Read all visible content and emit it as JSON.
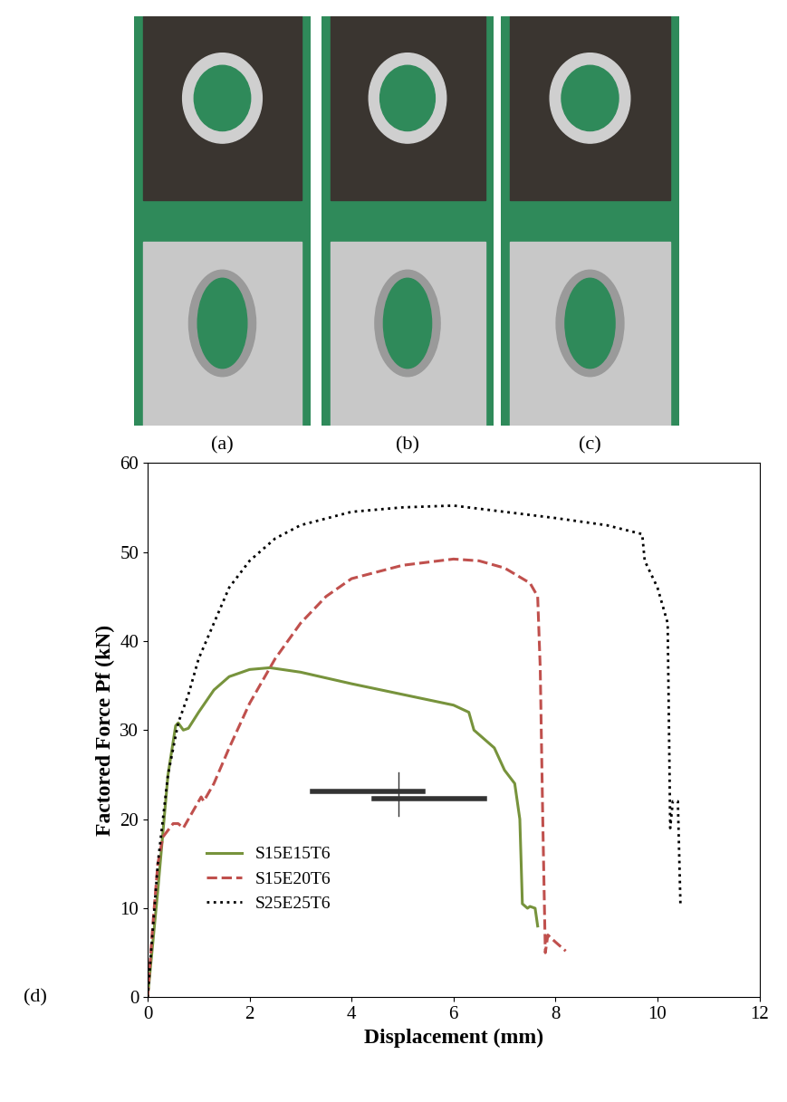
{
  "images": [
    {
      "label": "(a)"
    },
    {
      "label": "(b)"
    },
    {
      "label": "(c)"
    }
  ],
  "chart_data": {
    "type": "line",
    "annotations": [
      "(d)"
    ],
    "x_label": "Displacement (mm)",
    "y_label": "Factored Force Pf (kN)",
    "xlim": [
      0,
      12
    ],
    "xticks": [
      0,
      2,
      4,
      6,
      8,
      10,
      12
    ],
    "ylim": [
      0,
      60
    ],
    "yticks": [
      0,
      10,
      20,
      30,
      40,
      50,
      60
    ],
    "grid": false,
    "legend": "lower left",
    "series": [
      {
        "name": "S15E15T6",
        "color": "#77933c",
        "line_style": "solid",
        "x": [
          0,
          0.2,
          0.4,
          0.55,
          0.6,
          0.7,
          0.8,
          1.0,
          1.3,
          1.6,
          2.0,
          2.4,
          3.0,
          4.0,
          5.0,
          6.0,
          6.3,
          6.4,
          6.8,
          7.0,
          7.2,
          7.3,
          7.35,
          7.45,
          7.5,
          7.6,
          7.65
        ],
        "values": [
          0,
          12,
          25,
          30.5,
          30.8,
          30,
          30.2,
          32,
          34.5,
          36,
          36.8,
          37,
          36.5,
          35.2,
          34,
          32.8,
          32,
          30,
          28,
          25.5,
          24,
          20,
          10.5,
          10,
          10.2,
          10,
          8
        ]
      },
      {
        "name": "S15E20T6",
        "color": "#c0504d",
        "line_style": "dashed",
        "x": [
          0,
          0.1,
          0.2,
          0.3,
          0.5,
          0.6,
          0.7,
          0.9,
          1.05,
          1.1,
          1.3,
          1.6,
          2.0,
          2.5,
          3.0,
          3.5,
          4.0,
          5.0,
          6.0,
          6.5,
          7.0,
          7.5,
          7.65,
          7.7,
          7.75,
          7.8,
          7.85,
          8.0,
          8.2
        ],
        "values": [
          0,
          8,
          15,
          18,
          19.5,
          19.5,
          19,
          21,
          22.5,
          22,
          24,
          28,
          33,
          38,
          42,
          45,
          47,
          48.5,
          49.2,
          49,
          48.2,
          46.5,
          45,
          37,
          20,
          5,
          7,
          6.2,
          5.2
        ]
      },
      {
        "name": "S25E25T6",
        "color": "#000000",
        "line_style": "dotted",
        "x": [
          0,
          0.2,
          0.4,
          0.6,
          0.8,
          1.0,
          1.3,
          1.6,
          2.0,
          2.5,
          3.0,
          4.0,
          5.0,
          6.0,
          7.0,
          8.0,
          9.0,
          9.7,
          9.75,
          10.0,
          10.2,
          10.25,
          10.3,
          10.4,
          10.45
        ],
        "values": [
          0,
          15,
          25,
          30.8,
          34,
          38,
          42,
          46,
          49,
          51.5,
          53,
          54.5,
          55,
          55.2,
          54.5,
          53.8,
          53,
          52,
          49,
          46,
          42,
          19,
          22,
          22,
          10.5
        ]
      }
    ]
  }
}
